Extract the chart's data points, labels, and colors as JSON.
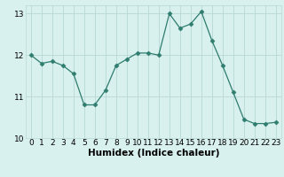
{
  "x": [
    0,
    1,
    2,
    3,
    4,
    5,
    6,
    7,
    8,
    9,
    10,
    11,
    12,
    13,
    14,
    15,
    16,
    17,
    18,
    19,
    20,
    21,
    22,
    23
  ],
  "y": [
    12.0,
    11.8,
    11.85,
    11.75,
    11.55,
    10.8,
    10.8,
    11.15,
    11.75,
    11.9,
    12.05,
    12.05,
    12.0,
    13.0,
    12.65,
    12.75,
    13.05,
    12.35,
    11.75,
    11.1,
    10.45,
    10.35,
    10.35,
    10.38
  ],
  "line_color": "#2e7d6e",
  "marker": "D",
  "marker_size": 2.5,
  "xlabel": "Humidex (Indice chaleur)",
  "xlim": [
    -0.5,
    23.5
  ],
  "ylim": [
    10,
    13.2
  ],
  "yticks": [
    10,
    11,
    12,
    13
  ],
  "xticks": [
    0,
    1,
    2,
    3,
    4,
    5,
    6,
    7,
    8,
    9,
    10,
    11,
    12,
    13,
    14,
    15,
    16,
    17,
    18,
    19,
    20,
    21,
    22,
    23
  ],
  "background_color": "#d8f0ee",
  "grid_color": "#b8d8d4",
  "tick_fontsize": 6.5,
  "label_fontsize": 7.5
}
